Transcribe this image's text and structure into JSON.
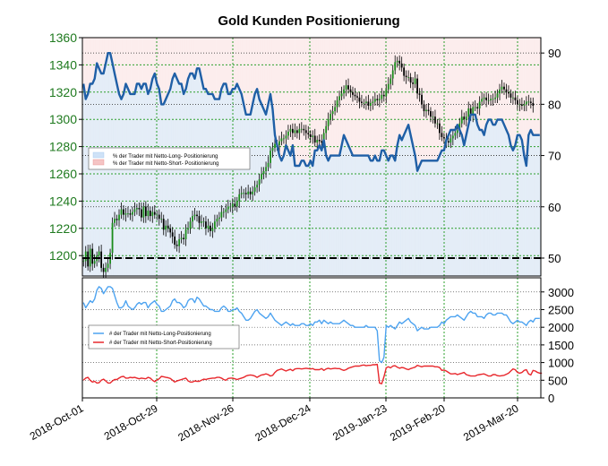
{
  "chart_data": [
    {
      "type": "line",
      "title": "Gold Kunden Positionierung",
      "xlabel": "",
      "ylabel": "",
      "x_ticks": [
        "2018-Oct-01",
        "2018-Oct-29",
        "2018-Nov-26",
        "2018-Dec-24",
        "2019-Jan-23",
        "2019-Feb-20",
        "2019-Mar-20"
      ],
      "y_left_ticks": [
        "1200",
        "1220",
        "1240",
        "1260",
        "1280",
        "1300",
        "1320",
        "1340",
        "1360"
      ],
      "y_left_range": [
        1185,
        1360
      ],
      "y_right_ticks": [
        "50",
        "60",
        "70",
        "80",
        "90"
      ],
      "y_right_range": [
        46.5,
        93
      ],
      "legend": {
        "placement": "center-left",
        "entries": [
          "% der Trader mit Netto-Long- Positionierung",
          "% der Trader mit Netto-Short- Positionierung"
        ]
      },
      "series": [
        {
          "name": "% der Trader mit Netto-Long- Positionierung",
          "axis": "right",
          "color": "#1f5fa6",
          "values": [
            84,
            81,
            82,
            84,
            84,
            85,
            88,
            87,
            86,
            86,
            88,
            90,
            90,
            88,
            86,
            84,
            82,
            81,
            82,
            84,
            83,
            82,
            82,
            82,
            84,
            84,
            83,
            84,
            84,
            82,
            83,
            85,
            86,
            84,
            83,
            80,
            80,
            81,
            82,
            83,
            85,
            86,
            85,
            84,
            84,
            82,
            83,
            85,
            86,
            86,
            85,
            87,
            87,
            85,
            83,
            83,
            82,
            82,
            82,
            81,
            81,
            81,
            83,
            84,
            84,
            82,
            82,
            83,
            83,
            84,
            83,
            82,
            80,
            78,
            78,
            78,
            80,
            82,
            83,
            81,
            80,
            79,
            78,
            80,
            82,
            79,
            74,
            72,
            70,
            69,
            70,
            72,
            71,
            70,
            72,
            68,
            68,
            68,
            69,
            69,
            68,
            68,
            69,
            68,
            71,
            71,
            72,
            71,
            73,
            70,
            69,
            70,
            70,
            70,
            70,
            70,
            72,
            74,
            73,
            72,
            71,
            70,
            70,
            70,
            70,
            70,
            70,
            70,
            70,
            69,
            69,
            70,
            69,
            69,
            71,
            71,
            70,
            69,
            70,
            70,
            69,
            72,
            74,
            73,
            74,
            75,
            76,
            74,
            72,
            70,
            67,
            68,
            69,
            69,
            69,
            69,
            69,
            69,
            69,
            69,
            70,
            71,
            71,
            73,
            74,
            75,
            75,
            75,
            76,
            75,
            74,
            72,
            74,
            76,
            78,
            78,
            78,
            76,
            75,
            75,
            74,
            76,
            77,
            77,
            76,
            76,
            77,
            77,
            77,
            76,
            75,
            74,
            72,
            71,
            72,
            74,
            74,
            73,
            70,
            68,
            74,
            75,
            74,
            74,
            74,
            74
          ]
        },
        {
          "name": "% der Trader mit Netto-Short- Positionierung",
          "axis": "right",
          "color": "#e06060",
          "values": []
        },
        {
          "name": "Gold",
          "axis": "left",
          "type": "candlestick",
          "color": "#000000",
          "values": [
            1196,
            1203,
            1192,
            1205,
            1194,
            1196,
            1200,
            1203,
            1191,
            1188,
            1191,
            1194,
            1202,
            1224,
            1227,
            1226,
            1230,
            1234,
            1230,
            1231,
            1231,
            1230,
            1232,
            1234,
            1235,
            1234,
            1228,
            1236,
            1229,
            1233,
            1229,
            1232,
            1230,
            1230,
            1227,
            1227,
            1219,
            1222,
            1220,
            1217,
            1214,
            1208,
            1207,
            1212,
            1213,
            1212,
            1219,
            1220,
            1225,
            1229,
            1230,
            1229,
            1224,
            1225,
            1225,
            1220,
            1222,
            1218,
            1220,
            1225,
            1227,
            1228,
            1232,
            1232,
            1234,
            1236,
            1236,
            1238,
            1236,
            1240,
            1245,
            1246,
            1246,
            1245,
            1247,
            1245,
            1247,
            1250,
            1252,
            1256,
            1260,
            1262,
            1265,
            1268,
            1277,
            1279,
            1282,
            1281,
            1284,
            1286,
            1286,
            1288,
            1291,
            1293,
            1290,
            1292,
            1290,
            1293,
            1293,
            1292,
            1290,
            1289,
            1287,
            1288,
            1283,
            1285,
            1284,
            1283,
            1290,
            1295,
            1300,
            1304,
            1306,
            1309,
            1314,
            1317,
            1319,
            1322,
            1325,
            1322,
            1320,
            1318,
            1317,
            1316,
            1313,
            1312,
            1312,
            1313,
            1310,
            1312,
            1313,
            1315,
            1314,
            1315,
            1318,
            1317,
            1322,
            1326,
            1330,
            1336,
            1342,
            1343,
            1341,
            1338,
            1332,
            1331,
            1331,
            1327,
            1326,
            1330,
            1319,
            1318,
            1311,
            1306,
            1307,
            1306,
            1302,
            1302,
            1297,
            1297,
            1290,
            1287,
            1286,
            1284,
            1283,
            1286,
            1288,
            1290,
            1292,
            1297,
            1302,
            1300,
            1302,
            1308,
            1303,
            1309,
            1309,
            1308,
            1313,
            1315,
            1316,
            1314,
            1314,
            1315,
            1315,
            1316,
            1319,
            1322,
            1324,
            1322,
            1320,
            1319,
            1316,
            1316,
            1314,
            1311,
            1311,
            1310,
            1311,
            1313,
            1313,
            1312,
            1310
          ]
        }
      ],
      "reference_line": {
        "axis": "right",
        "value": 50,
        "style": "dashed",
        "color": "#000000"
      },
      "grid": true
    },
    {
      "type": "line",
      "title": "",
      "xlabel": "",
      "ylabel": "",
      "y_right_ticks": [
        "0",
        "500",
        "1000",
        "1500",
        "2000",
        "2500",
        "3000"
      ],
      "y_right_range": [
        0,
        3400
      ],
      "legend": {
        "placement": "center-left",
        "entries": [
          "# der Trader mit Netto-Long-Positionierung",
          "# der Trader mit Netto-Short-Positionierung"
        ]
      },
      "grid": true,
      "series": [
        {
          "name": "# der Trader mit Netto-Long-Positionierung",
          "color": "#4da3f0",
          "values": [
            2700,
            2550,
            2650,
            2750,
            2700,
            2800,
            3050,
            3150,
            3100,
            2950,
            3050,
            3150,
            3150,
            3100,
            2900,
            2700,
            2550,
            2550,
            2600,
            2750,
            2600,
            2550,
            2500,
            2550,
            2650,
            2700,
            2650,
            2700,
            2700,
            2550,
            2650,
            2700,
            2750,
            2650,
            2600,
            2450,
            2450,
            2500,
            2550,
            2600,
            2750,
            2800,
            2700,
            2700,
            2650,
            2550,
            2600,
            2750,
            2800,
            2800,
            2700,
            2850,
            2800,
            2700,
            2600,
            2600,
            2550,
            2500,
            2500,
            2450,
            2450,
            2450,
            2550,
            2600,
            2550,
            2450,
            2450,
            2500,
            2500,
            2550,
            2450,
            2400,
            2300,
            2200,
            2200,
            2250,
            2350,
            2450,
            2500,
            2400,
            2350,
            2300,
            2250,
            2300,
            2400,
            2300,
            2200,
            2150,
            2100,
            2050,
            2100,
            2150,
            2100,
            2050,
            2100,
            2050,
            2050,
            2050,
            2100,
            2100,
            2050,
            2050,
            2100,
            2050,
            2150,
            2150,
            2200,
            2100,
            2200,
            2150,
            2100,
            2150,
            2100,
            2100,
            2100,
            2100,
            2150,
            2200,
            2150,
            2100,
            2050,
            2050,
            2000,
            2000,
            2000,
            2000,
            2000,
            2050,
            2000,
            2000,
            2000,
            2000,
            1900,
            1050,
            1000,
            1150,
            2050,
            2000,
            2050,
            2000,
            1950,
            2050,
            2150,
            2100,
            2150,
            2200,
            2250,
            2150,
            2100,
            2050,
            1900,
            1950,
            2000,
            1950,
            1950,
            1950,
            2000,
            2000,
            2000,
            2000,
            2050,
            2150,
            2100,
            2200,
            2250,
            2300,
            2300,
            2300,
            2350,
            2300,
            2250,
            2200,
            2300,
            2400,
            2450,
            2400,
            2400,
            2300,
            2300,
            2300,
            2250,
            2350,
            2400,
            2400,
            2350,
            2350,
            2400,
            2400,
            2400,
            2350,
            2350,
            2250,
            2150,
            2100,
            2150,
            2200,
            2150,
            2150,
            2100,
            2050,
            2150,
            2200,
            2150,
            2250,
            2250,
            2250
          ]
        },
        {
          "name": "# der Trader mit Netto-Short-Positionierung",
          "color": "#e8282d",
          "values": [
            500,
            560,
            580,
            500,
            450,
            470,
            420,
            430,
            500,
            530,
            480,
            420,
            420,
            480,
            520,
            520,
            560,
            600,
            610,
            560,
            560,
            580,
            570,
            580,
            560,
            540,
            560,
            550,
            540,
            580,
            560,
            500,
            460,
            510,
            540,
            610,
            600,
            580,
            570,
            550,
            500,
            450,
            480,
            500,
            520,
            540,
            560,
            480,
            450,
            450,
            480,
            470,
            470,
            500,
            530,
            520,
            540,
            550,
            560,
            560,
            580,
            580,
            560,
            520,
            500,
            550,
            560,
            560,
            540,
            520,
            540,
            560,
            580,
            620,
            640,
            650,
            640,
            620,
            580,
            620,
            650,
            660,
            680,
            660,
            620,
            640,
            720,
            780,
            800,
            820,
            790,
            760,
            790,
            810,
            770,
            820,
            830,
            830,
            820,
            830,
            840,
            830,
            820,
            830,
            800,
            800,
            800,
            830,
            780,
            820,
            840,
            820,
            830,
            840,
            830,
            830,
            800,
            780,
            800,
            840,
            860,
            880,
            900,
            900,
            900,
            920,
            930,
            910,
            920,
            920,
            940,
            940,
            950,
            420,
            400,
            600,
            850,
            880,
            850,
            900,
            910,
            870,
            840,
            860,
            850,
            820,
            800,
            830,
            850,
            870,
            920,
            900,
            880,
            900,
            900,
            900,
            900,
            900,
            880,
            880,
            860,
            780,
            790,
            760,
            720,
            680,
            680,
            690,
            660,
            680,
            700,
            720,
            660,
            640,
            620,
            620,
            620,
            650,
            660,
            670,
            680,
            650,
            620,
            620,
            660,
            660,
            630,
            620,
            630,
            640,
            670,
            700,
            760,
            820,
            800,
            720,
            700,
            720,
            780,
            800,
            680,
            650,
            780,
            760,
            720,
            700,
            700
          ]
        }
      ]
    }
  ]
}
